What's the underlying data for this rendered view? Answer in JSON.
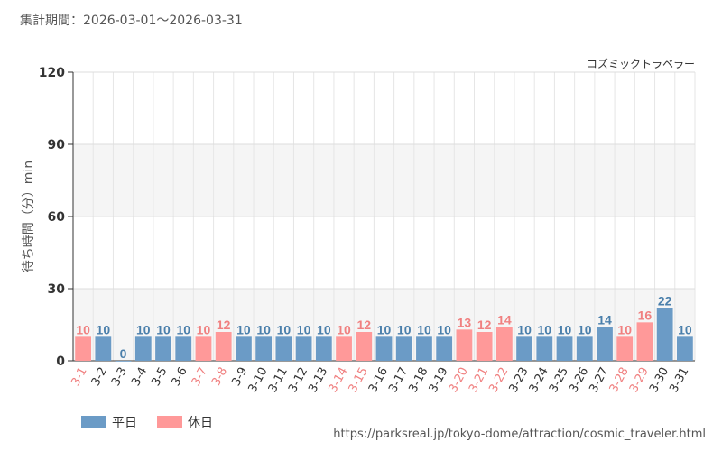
{
  "header": {
    "period": "集計期間：2026-03-01～2026-03-31",
    "attraction": "コズミックトラベラー"
  },
  "footer": {
    "url": "https://parksreal.jp/tokyo-dome/attraction/cosmic_traveler.html"
  },
  "legend": {
    "weekday": "平日",
    "holiday": "休日"
  },
  "colors": {
    "weekday": "#6b9bc6",
    "holiday": "#ff9999",
    "weekday_text": "#4a7fab",
    "holiday_text": "#f08080"
  },
  "chart_data": {
    "type": "bar",
    "ylabel": "待ち時間（分）min",
    "ylim": [
      0,
      120
    ],
    "yticks": [
      0,
      30,
      60,
      90,
      120
    ],
    "categories": [
      "3-1",
      "3-2",
      "3-3",
      "3-4",
      "3-5",
      "3-6",
      "3-7",
      "3-8",
      "3-9",
      "3-10",
      "3-11",
      "3-12",
      "3-13",
      "3-14",
      "3-15",
      "3-16",
      "3-17",
      "3-18",
      "3-19",
      "3-20",
      "3-21",
      "3-22",
      "3-23",
      "3-24",
      "3-25",
      "3-26",
      "3-27",
      "3-28",
      "3-29",
      "3-30",
      "3-31"
    ],
    "values": [
      10,
      10,
      0,
      10,
      10,
      10,
      10,
      12,
      10,
      10,
      10,
      10,
      10,
      10,
      12,
      10,
      10,
      10,
      10,
      13,
      12,
      14,
      10,
      10,
      10,
      10,
      14,
      10,
      16,
      22,
      10
    ],
    "day_type": [
      "holiday",
      "weekday",
      "weekday",
      "weekday",
      "weekday",
      "weekday",
      "holiday",
      "holiday",
      "weekday",
      "weekday",
      "weekday",
      "weekday",
      "weekday",
      "holiday",
      "holiday",
      "weekday",
      "weekday",
      "weekday",
      "weekday",
      "holiday",
      "holiday",
      "holiday",
      "weekday",
      "weekday",
      "weekday",
      "weekday",
      "weekday",
      "holiday",
      "holiday",
      "weekday",
      "weekday"
    ],
    "grid": true
  }
}
